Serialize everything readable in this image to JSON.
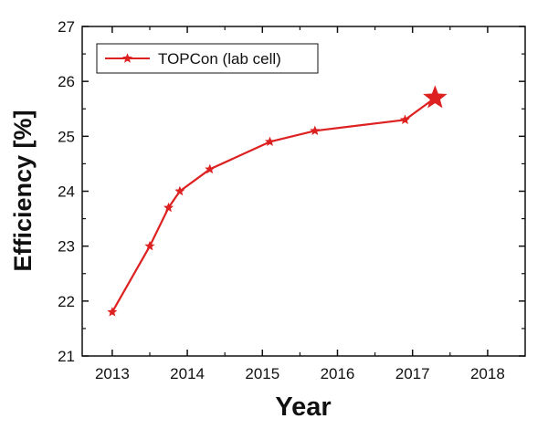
{
  "chart_data": {
    "type": "line",
    "xlabel": "Year",
    "ylabel": "Efficiency [%]",
    "xlim": [
      2012.6,
      2018.5
    ],
    "ylim": [
      21,
      27
    ],
    "xticks": [
      2013,
      2014,
      2015,
      2016,
      2017,
      2018
    ],
    "yticks": [
      21,
      22,
      23,
      24,
      25,
      26,
      27
    ],
    "grid": false,
    "legend_position": "top-left",
    "series": [
      {
        "name": "TOPCon (lab cell)",
        "color": "#dd2020",
        "marker": "star",
        "x": [
          2013.0,
          2013.5,
          2013.75,
          2013.9,
          2014.3,
          2015.1,
          2015.7,
          2016.9,
          2017.3
        ],
        "y": [
          21.8,
          23.0,
          23.7,
          24.0,
          24.4,
          24.9,
          25.1,
          25.3,
          25.7
        ],
        "highlight_last": true
      }
    ]
  }
}
